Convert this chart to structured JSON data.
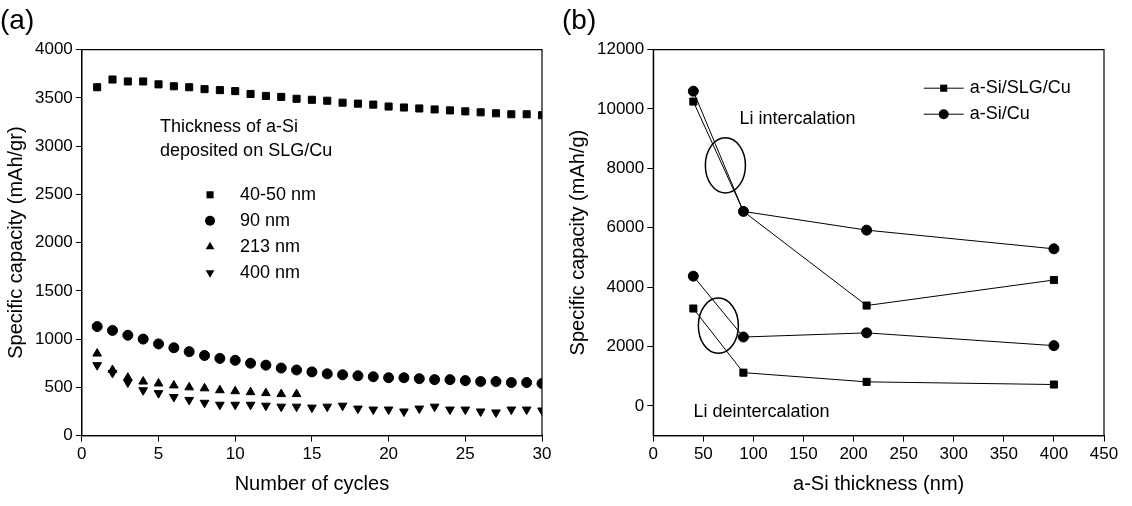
{
  "chart_data": [
    {
      "type": "scatter",
      "title": "(a)",
      "xlabel": "Number of cycles",
      "ylabel": "Specific capacity (mAh/gr)",
      "legend_title": "Thickness of a-Si deposited on SLG/Cu",
      "legend": "center",
      "grid": false,
      "x": [
        1,
        2,
        3,
        4,
        5,
        6,
        7,
        8,
        9,
        10,
        11,
        12,
        13,
        14,
        15,
        16,
        17,
        18,
        19,
        20,
        21,
        22,
        23,
        24,
        25,
        26,
        27,
        28,
        29,
        30
      ],
      "xlim": [
        0,
        30
      ],
      "xticks": [
        0,
        5,
        10,
        15,
        20,
        25,
        30
      ],
      "ylim": [
        0,
        4000
      ],
      "yticks": [
        0,
        500,
        1000,
        1500,
        2000,
        2500,
        3000,
        3500,
        4000
      ],
      "series": [
        {
          "name": "40-50 nm",
          "color": "#000000",
          "marker": "square",
          "values": [
            3610,
            3690,
            3670,
            3670,
            3640,
            3620,
            3610,
            3590,
            3580,
            3570,
            3540,
            3520,
            3510,
            3490,
            3480,
            3470,
            3450,
            3440,
            3430,
            3410,
            3400,
            3390,
            3380,
            3370,
            3360,
            3350,
            3340,
            3330,
            3330,
            3320
          ]
        },
        {
          "name": "90 nm",
          "color": "#000000",
          "marker": "circle",
          "values": [
            1130,
            1090,
            1040,
            1000,
            950,
            910,
            870,
            830,
            800,
            780,
            750,
            730,
            700,
            680,
            660,
            640,
            630,
            620,
            610,
            600,
            600,
            590,
            580,
            580,
            570,
            560,
            560,
            550,
            550,
            540
          ]
        },
        {
          "name": "213 nm",
          "color": "#000000",
          "marker": "triangle",
          "x": [
            1,
            2,
            3,
            4,
            5,
            6,
            7,
            8,
            9,
            10,
            11,
            12,
            13,
            14
          ],
          "values": [
            850,
            680,
            600,
            560,
            540,
            520,
            500,
            490,
            470,
            460,
            450,
            440,
            430,
            430
          ]
        },
        {
          "name": "400 nm",
          "color": "#000000",
          "marker": "triangle-down",
          "values": [
            730,
            650,
            550,
            470,
            440,
            400,
            370,
            340,
            320,
            320,
            320,
            310,
            300,
            300,
            290,
            300,
            310,
            280,
            270,
            270,
            250,
            280,
            300,
            270,
            270,
            250,
            240,
            270,
            270,
            260
          ]
        }
      ]
    },
    {
      "type": "line",
      "title": "(b)",
      "xlabel": "a-Si thickness (nm)",
      "ylabel": "Specific capacity (mAh/g)",
      "legend": "top right",
      "grid": false,
      "x": [
        40,
        90,
        213,
        400
      ],
      "xlim": [
        0,
        450
      ],
      "xticks": [
        0,
        50,
        100,
        150,
        200,
        250,
        300,
        350,
        400,
        450
      ],
      "ylim": [
        -1000,
        12000
      ],
      "yticks": [
        0,
        2000,
        4000,
        6000,
        8000,
        10000,
        12000
      ],
      "annotations": [
        "Li intercalation",
        "Li deintercalation"
      ],
      "series": [
        {
          "name": "a-Si/SLG/Cu",
          "color": "#000000",
          "marker": "square",
          "values": [
            10250,
            6550,
            3380,
            4240
          ]
        },
        {
          "name": "a-Si/Cu",
          "color": "#000000",
          "marker": "circle",
          "values": [
            10600,
            6550,
            5920,
            5290
          ]
        },
        {
          "color": "#000000",
          "marker": "square",
          "values": [
            3280,
            1120,
            810,
            720
          ]
        },
        {
          "color": "#000000",
          "marker": "circle",
          "values": [
            4370,
            2320,
            2460,
            2030
          ]
        }
      ]
    }
  ]
}
